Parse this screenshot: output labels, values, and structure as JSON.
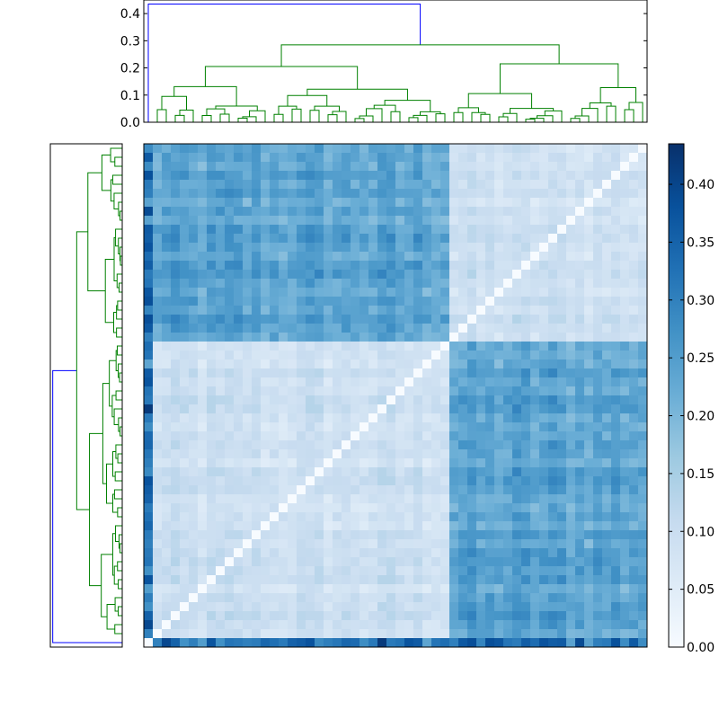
{
  "chart_data": [
    {
      "type": "dendrogram",
      "orientation": "top",
      "ylim": [
        0.0,
        0.45
      ],
      "yticks": [
        "0.0",
        "0.1",
        "0.2",
        "0.3",
        "0.4"
      ],
      "ytick_values": [
        0.0,
        0.1,
        0.2,
        0.3,
        0.4
      ],
      "root_height": 0.435,
      "main_split_height": 0.285,
      "left_cluster_height": 0.205,
      "right_cluster_height": 0.215,
      "link_colors": {
        "root": "#0000ff",
        "clusters": "#008000"
      }
    },
    {
      "type": "dendrogram",
      "orientation": "left",
      "root_height": 0.435,
      "main_split_height": 0.285,
      "link_colors": {
        "root": "#0000ff",
        "clusters": "#008000"
      }
    },
    {
      "type": "heatmap",
      "rows": 56,
      "cols": 56,
      "outlier_leaf_index": 0,
      "group_A_range": [
        1,
        33
      ],
      "group_B_range": [
        34,
        55
      ],
      "diagonal_value": 0.0,
      "within_group_range": [
        0.04,
        0.14
      ],
      "between_group_range": [
        0.16,
        0.31
      ],
      "outlier_row_range": [
        0.22,
        0.43
      ],
      "colormap": "Blues",
      "vmin": 0.0,
      "vmax": 0.435
    },
    {
      "type": "colorbar",
      "colormap": "Blues",
      "ticks": [
        "0.00",
        "0.05",
        "0.10",
        "0.15",
        "0.20",
        "0.25",
        "0.30",
        "0.35",
        "0.40"
      ],
      "tick_values": [
        0.0,
        0.05,
        0.1,
        0.15,
        0.2,
        0.25,
        0.3,
        0.35,
        0.4
      ],
      "range": [
        0.0,
        0.435
      ]
    }
  ],
  "colors": {
    "root_link": "#0000ff",
    "cluster_link": "#008000",
    "cmap_low": "#f7fbff",
    "cmap_high": "#08306b"
  }
}
